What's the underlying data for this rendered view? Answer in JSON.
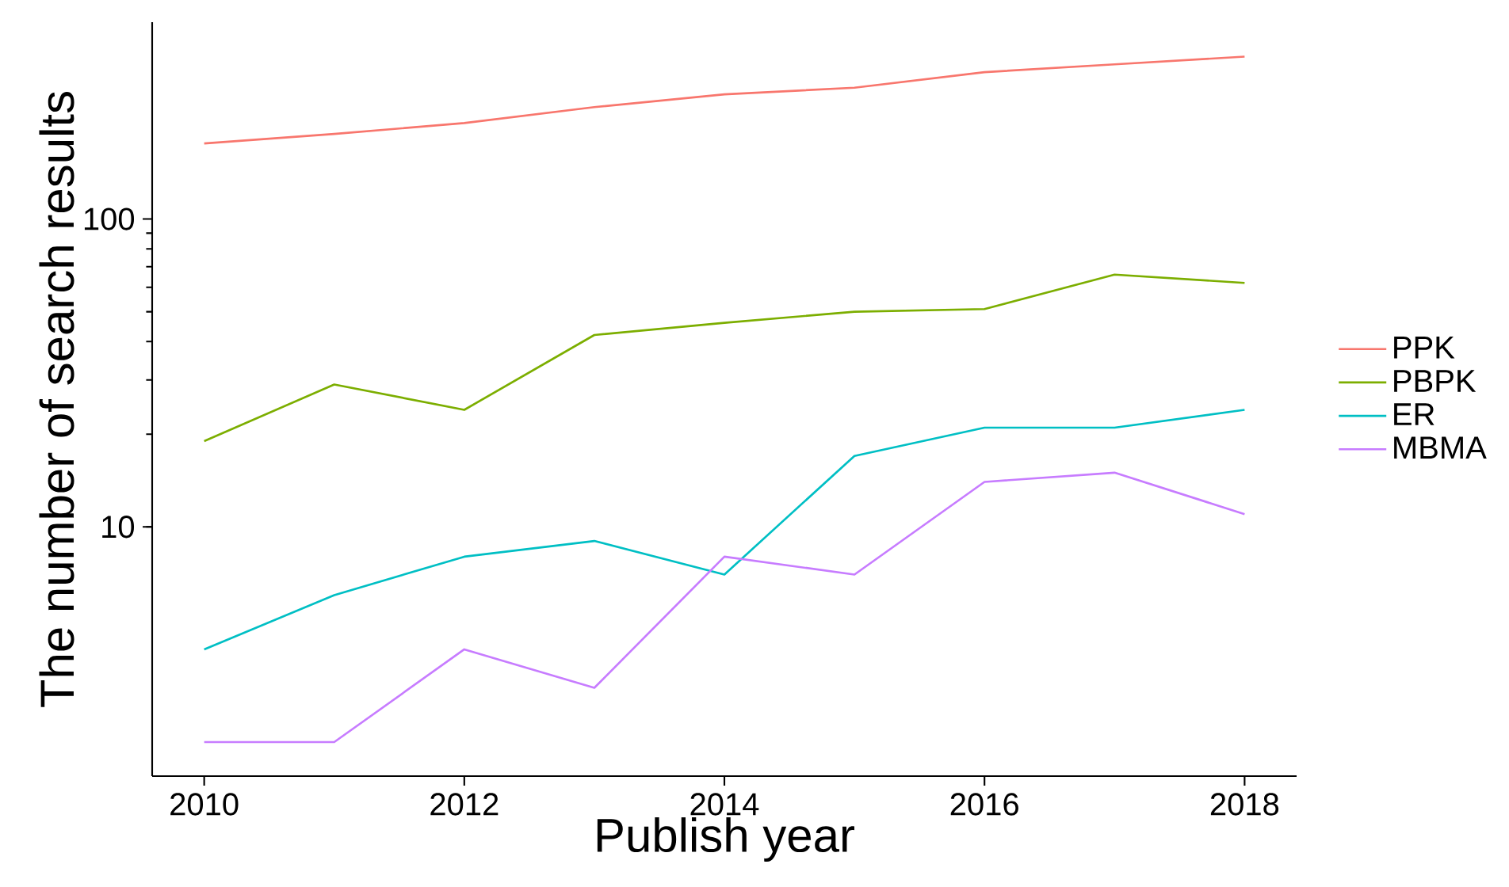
{
  "chart_data": {
    "type": "line",
    "xlabel": "Publish year",
    "ylabel": "The number of search results",
    "x": [
      2010,
      2011,
      2012,
      2013,
      2014,
      2015,
      2016,
      2017,
      2018
    ],
    "series": [
      {
        "name": "PPK",
        "color": "#f8766d",
        "values": [
          176,
          189,
          205,
          231,
          254,
          267,
          300,
          318,
          337
        ]
      },
      {
        "name": "PBPK",
        "color": "#7cae00",
        "values": [
          19,
          29,
          24,
          42,
          46,
          50,
          51,
          66,
          62
        ]
      },
      {
        "name": "ER",
        "color": "#00bfc4",
        "values": [
          4,
          6,
          8,
          9,
          7,
          17,
          21,
          21,
          24
        ]
      },
      {
        "name": "MBMA",
        "color": "#c77cff",
        "values": [
          2,
          2,
          4,
          3,
          8,
          7,
          14,
          15,
          11
        ]
      }
    ],
    "xlim": [
      2009.6,
      2018.4
    ],
    "ylim": [
      1.55,
      436
    ],
    "xticks": [
      2010,
      2012,
      2014,
      2016,
      2018
    ],
    "yticks": [
      10,
      100
    ],
    "log": "y",
    "grid": false,
    "legend": "right"
  }
}
